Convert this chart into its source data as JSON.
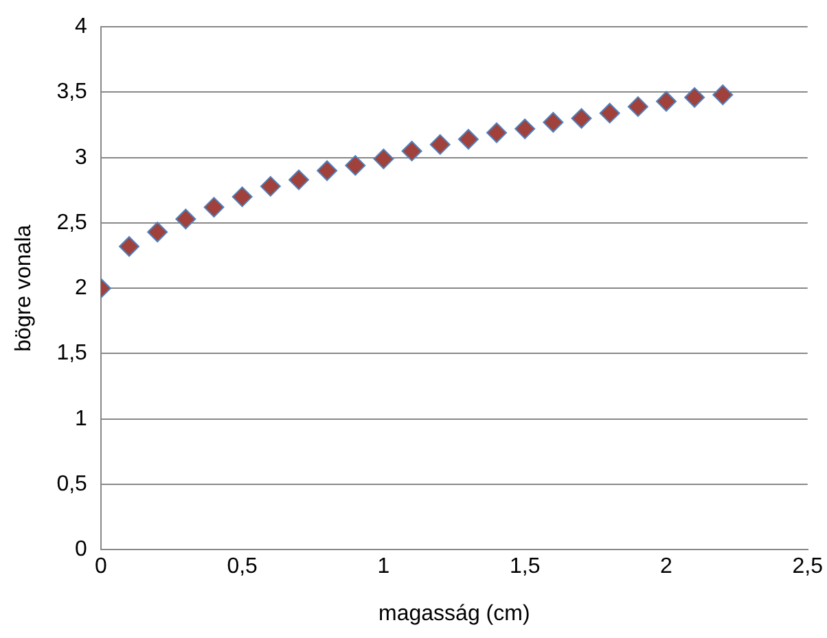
{
  "chart_data": {
    "type": "scatter",
    "xlabel": "magasság (cm)",
    "ylabel": "bögre vonala",
    "x": [
      0,
      0.1,
      0.2,
      0.3,
      0.4,
      0.5,
      0.6,
      0.7,
      0.8,
      0.9,
      1,
      1.1,
      1.2,
      1.3,
      1.4,
      1.5,
      1.6,
      1.7,
      1.8,
      1.9,
      2,
      2.1,
      2.2
    ],
    "series": [
      {
        "color": "#a0413c",
        "values": [
          2,
          2.32,
          2.43,
          2.53,
          2.62,
          2.7,
          2.78,
          2.83,
          2.9,
          2.94,
          2.99,
          3.05,
          3.1,
          3.14,
          3.19,
          3.22,
          3.27,
          3.3,
          3.34,
          3.39,
          3.43,
          3.46,
          3.48
        ]
      }
    ],
    "xlim": [
      0,
      2.5
    ],
    "xticks": [
      {
        "value": 0,
        "label": "0"
      },
      {
        "value": 0.5,
        "label": "0,5"
      },
      {
        "value": 1,
        "label": "1"
      },
      {
        "value": 1.5,
        "label": "1,5"
      },
      {
        "value": 2,
        "label": "2"
      },
      {
        "value": 2.5,
        "label": "2,5"
      }
    ],
    "ylim": [
      0,
      4
    ],
    "yticks": [
      {
        "value": 0,
        "label": "0"
      },
      {
        "value": 0.5,
        "label": "0,5"
      },
      {
        "value": 1,
        "label": "1"
      },
      {
        "value": 1.5,
        "label": "1,5"
      },
      {
        "value": 2,
        "label": "2"
      },
      {
        "value": 2.5,
        "label": "2,5"
      },
      {
        "value": 3,
        "label": "3"
      },
      {
        "value": 3.5,
        "label": "3,5"
      },
      {
        "value": 4,
        "label": "4"
      }
    ],
    "grid": "y",
    "marker": "diamond",
    "legend": false
  }
}
